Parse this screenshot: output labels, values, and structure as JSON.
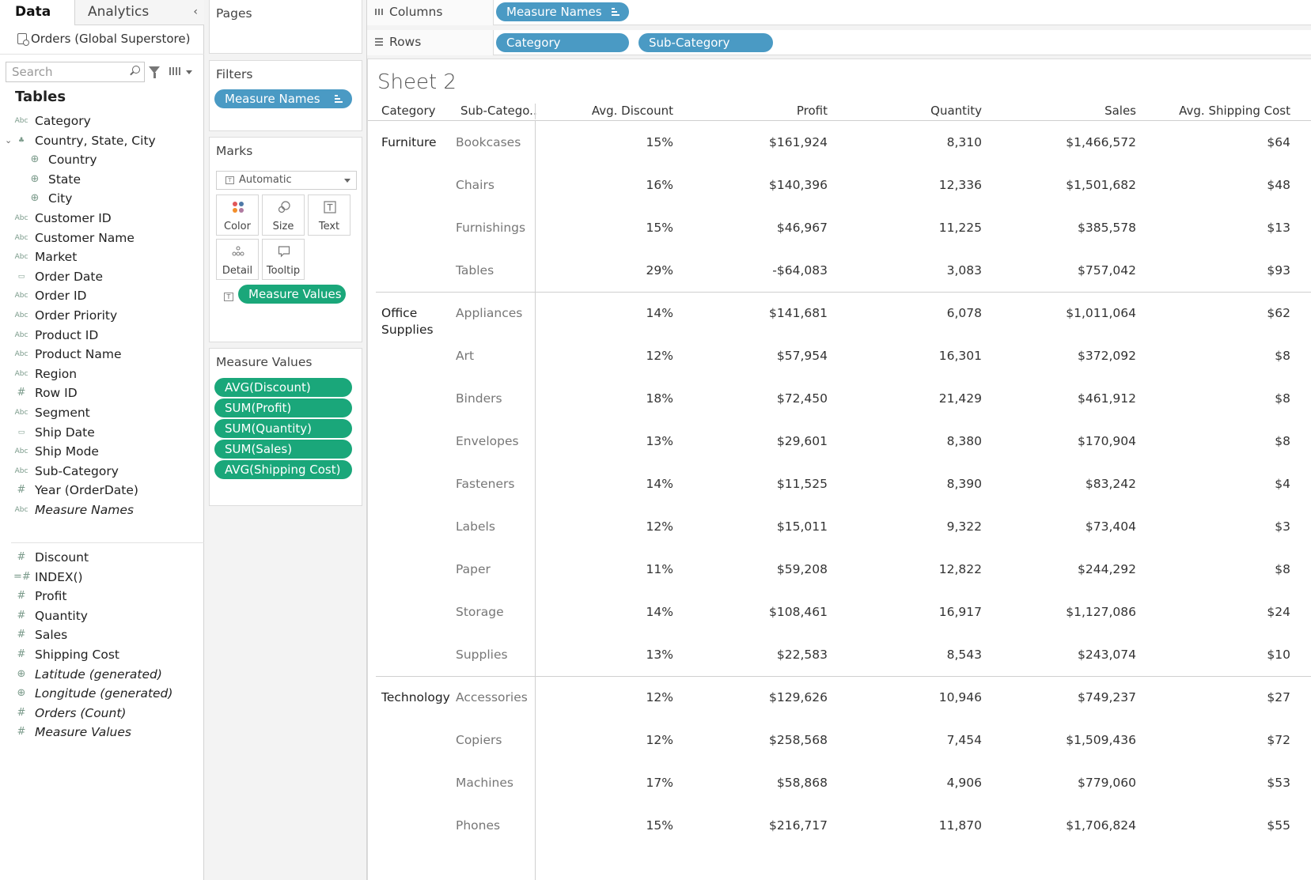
{
  "data_pane": {
    "tab_data": "Data",
    "tab_analytics": "Analytics",
    "collapse_glyph": "‹",
    "datasource": "Orders (Global Superstore)",
    "search_placeholder": "Search",
    "tables_heading": "Tables",
    "dimensions": [
      {
        "label": "Category",
        "type": "Abc"
      },
      {
        "label": "Country, State, City",
        "type": "hierarchy"
      },
      {
        "label": "Country",
        "type": "geo",
        "child": true
      },
      {
        "label": "State",
        "type": "geo",
        "child": true
      },
      {
        "label": "City",
        "type": "geo",
        "child": true
      },
      {
        "label": "Customer ID",
        "type": "Abc"
      },
      {
        "label": "Customer Name",
        "type": "Abc"
      },
      {
        "label": "Market",
        "type": "Abc"
      },
      {
        "label": "Order Date",
        "type": "date"
      },
      {
        "label": "Order ID",
        "type": "Abc"
      },
      {
        "label": "Order Priority",
        "type": "Abc"
      },
      {
        "label": "Product ID",
        "type": "Abc"
      },
      {
        "label": "Product Name",
        "type": "Abc"
      },
      {
        "label": "Region",
        "type": "Abc"
      },
      {
        "label": "Row ID",
        "type": "#"
      },
      {
        "label": "Segment",
        "type": "Abc"
      },
      {
        "label": "Ship Date",
        "type": "date"
      },
      {
        "label": "Ship Mode",
        "type": "Abc"
      },
      {
        "label": "Sub-Category",
        "type": "Abc"
      },
      {
        "label": "Year (OrderDate)",
        "type": "#"
      },
      {
        "label": "Measure Names",
        "type": "Abc",
        "italic": true
      }
    ],
    "measures": [
      {
        "label": "Discount",
        "type": "#"
      },
      {
        "label": "INDEX()",
        "type": "calc#"
      },
      {
        "label": "Profit",
        "type": "#"
      },
      {
        "label": "Quantity",
        "type": "#"
      },
      {
        "label": "Sales",
        "type": "#"
      },
      {
        "label": "Shipping Cost",
        "type": "#"
      },
      {
        "label": "Latitude (generated)",
        "type": "geo",
        "italic": true
      },
      {
        "label": "Longitude (generated)",
        "type": "geo",
        "italic": true
      },
      {
        "label": "Orders (Count)",
        "type": "#",
        "italic": true
      },
      {
        "label": "Measure Values",
        "type": "#",
        "italic": true
      }
    ]
  },
  "pages": {
    "title": "Pages"
  },
  "filters": {
    "title": "Filters",
    "pill": "Measure Names"
  },
  "marks": {
    "title": "Marks",
    "type": "Automatic",
    "buttons": {
      "color": "Color",
      "size": "Size",
      "text": "Text",
      "detail": "Detail",
      "tooltip": "Tooltip"
    },
    "text_pill": "Measure Values"
  },
  "measure_values": {
    "title": "Measure Values",
    "pills": [
      "AVG(Discount)",
      "SUM(Profit)",
      "SUM(Quantity)",
      "SUM(Sales)",
      "AVG(Shipping Cost)"
    ]
  },
  "shelves": {
    "columns_label": "Columns",
    "columns_pills": [
      "Measure Names"
    ],
    "rows_label": "Rows",
    "rows_pills": [
      "Category",
      "Sub-Category"
    ]
  },
  "sheet": {
    "title": "Sheet 2",
    "headers": [
      "Category",
      "Sub-Catego..",
      "Avg. Discount",
      "Profit",
      "Quantity",
      "Sales",
      "Avg. Shipping Cost"
    ],
    "groups": [
      {
        "category": "Furniture",
        "rows": [
          [
            "Bookcases",
            "15%",
            "$161,924",
            "8,310",
            "$1,466,572",
            "$64"
          ],
          [
            "Chairs",
            "16%",
            "$140,396",
            "12,336",
            "$1,501,682",
            "$48"
          ],
          [
            "Furnishings",
            "15%",
            "$46,967",
            "11,225",
            "$385,578",
            "$13"
          ],
          [
            "Tables",
            "29%",
            "-$64,083",
            "3,083",
            "$757,042",
            "$93"
          ]
        ]
      },
      {
        "category": "Office Supplies",
        "rows": [
          [
            "Appliances",
            "14%",
            "$141,681",
            "6,078",
            "$1,011,064",
            "$62"
          ],
          [
            "Art",
            "12%",
            "$57,954",
            "16,301",
            "$372,092",
            "$8"
          ],
          [
            "Binders",
            "18%",
            "$72,450",
            "21,429",
            "$461,912",
            "$8"
          ],
          [
            "Envelopes",
            "13%",
            "$29,601",
            "8,380",
            "$170,904",
            "$8"
          ],
          [
            "Fasteners",
            "14%",
            "$11,525",
            "8,390",
            "$83,242",
            "$4"
          ],
          [
            "Labels",
            "12%",
            "$15,011",
            "9,322",
            "$73,404",
            "$3"
          ],
          [
            "Paper",
            "11%",
            "$59,208",
            "12,822",
            "$244,292",
            "$8"
          ],
          [
            "Storage",
            "14%",
            "$108,461",
            "16,917",
            "$1,127,086",
            "$24"
          ],
          [
            "Supplies",
            "13%",
            "$22,583",
            "8,543",
            "$243,074",
            "$10"
          ]
        ]
      },
      {
        "category": "Technology",
        "rows": [
          [
            "Accessories",
            "12%",
            "$129,626",
            "10,946",
            "$749,237",
            "$27"
          ],
          [
            "Copiers",
            "12%",
            "$258,568",
            "7,454",
            "$1,509,436",
            "$72"
          ],
          [
            "Machines",
            "17%",
            "$58,868",
            "4,906",
            "$779,060",
            "$53"
          ],
          [
            "Phones",
            "15%",
            "$216,717",
            "11,870",
            "$1,706,824",
            "$55"
          ]
        ]
      }
    ]
  },
  "colors": {
    "dimension_pill": "#4a9ac4",
    "measure_pill": "#1aa77a"
  }
}
